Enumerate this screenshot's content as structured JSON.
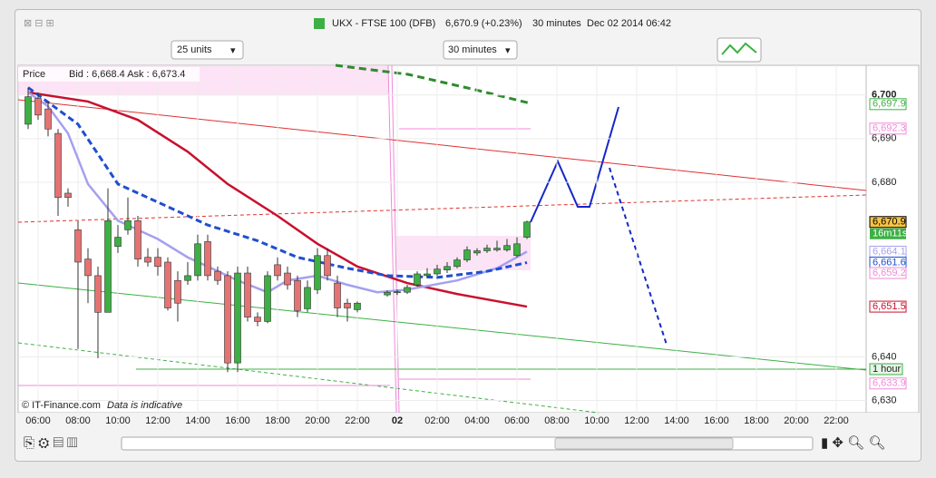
{
  "window": {
    "title": "UKX - FTSE 100 (DFB)",
    "quote": "6,670.9 (+0.23%)",
    "interval": "30 minutes",
    "datetime": "Dec 02 2014 06:42"
  },
  "toolbar": {
    "units": "25 units",
    "period": "30 minutes"
  },
  "chart_info": {
    "price": "Price",
    "bid_ask": "Bid : 6,668.4 Ask : 6,673.4",
    "copyright": "© IT-Finance.com",
    "disclaimer": "Data is indicative"
  },
  "chart_data": {
    "type": "candlestick",
    "x": [
      5.5,
      6,
      6.5,
      7,
      7.5,
      8,
      8.5,
      9,
      9.5,
      10,
      10.5,
      11,
      11.5,
      12,
      12.5,
      13,
      13.5,
      14,
      14.5,
      15,
      15.5,
      16,
      16.5,
      17,
      17.5,
      18,
      18.5,
      19,
      19.5,
      20,
      20.5,
      21,
      21.5,
      22,
      23.5,
      24,
      24.5,
      25,
      25.5,
      26,
      26.5,
      27,
      27.5,
      28,
      28.5,
      29,
      29.5,
      30,
      30.5
    ],
    "open": [
      6693.3,
      6699.2,
      6696.8,
      6691.2,
      6677.5,
      6669.1,
      6662.4,
      6658.6,
      6650.2,
      6665.3,
      6669.1,
      6671.2,
      6662.8,
      6662.8,
      6661.7,
      6657.5,
      6657.5,
      6658.6,
      6666.4,
      6659.6,
      6658.6,
      6638.6,
      6659.2,
      6649.1,
      6648.1,
      6661.1,
      6659.2,
      6657.5,
      6651.0,
      6655.4,
      6663.2,
      6656.9,
      6652.3,
      6650.8,
      6654.2,
      6654.8,
      6654.8,
      6656.5,
      6658.6,
      6659.0,
      6659.9,
      6660.7,
      6662.2,
      6663.8,
      6664.3,
      6664.5,
      6664.5,
      6663.2,
      6667.4
    ],
    "high": [
      6701.7,
      6700.6,
      6698.5,
      6692.2,
      6678.6,
      6671.2,
      6664.9,
      6660.7,
      6678.6,
      6670.2,
      6676.5,
      6672.3,
      6664.9,
      6664.9,
      6662.8,
      6659.6,
      6661.7,
      6668.0,
      6668.0,
      6660.7,
      6659.6,
      6660.7,
      6660.7,
      6650.2,
      6659.6,
      6662.8,
      6660.7,
      6658.6,
      6657.5,
      6664.9,
      6664.9,
      6658.6,
      6653.3,
      6652.7,
      6655.2,
      6655.4,
      6656.5,
      6659.6,
      6660.3,
      6661.1,
      6661.7,
      6662.8,
      6665.3,
      6664.9,
      6665.7,
      6666.6,
      6667.0,
      6667.4,
      6671.2
    ],
    "low": [
      6692.2,
      6694.3,
      6690.5,
      6672.3,
      6674.4,
      6641.8,
      6652.3,
      6639.7,
      6650.2,
      6663.8,
      6668.0,
      6660.7,
      6660.7,
      6658.6,
      6650.6,
      6648.1,
      6656.5,
      6657.5,
      6657.5,
      6656.5,
      6636.5,
      6636.5,
      6648.1,
      6647.0,
      6647.7,
      6657.5,
      6655.4,
      6649.1,
      6650.2,
      6654.4,
      6657.5,
      6649.1,
      6648.1,
      6650.2,
      6653.8,
      6654.2,
      6654.4,
      6656.1,
      6658.2,
      6658.6,
      6659.2,
      6660.3,
      6661.7,
      6663.2,
      6663.8,
      6664.1,
      6664.1,
      6662.8,
      6667.0
    ],
    "close": [
      6699.6,
      6695.4,
      6692.2,
      6676.5,
      6676.5,
      6661.7,
      6658.6,
      6650.2,
      6671.2,
      6667.4,
      6671.2,
      6662.4,
      6661.7,
      6660.7,
      6651.2,
      6652.3,
      6658.6,
      6665.9,
      6658.6,
      6657.5,
      6638.6,
      6659.2,
      6649.1,
      6648.1,
      6658.6,
      6658.6,
      6656.5,
      6650.6,
      6655.9,
      6663.2,
      6658.6,
      6651.2,
      6651.2,
      6652.3,
      6654.8,
      6654.9,
      6655.9,
      6659.0,
      6659.0,
      6660.1,
      6660.7,
      6662.2,
      6664.5,
      6664.3,
      6664.9,
      6664.9,
      6665.5,
      6665.9,
      6670.9
    ],
    "up_color": "#3cb043",
    "down_color": "#e57373",
    "lines": [
      {
        "color": "#c8102e",
        "dash": false,
        "x": [
          5.5,
          8.5,
          11,
          13.5,
          15.5,
          18,
          20,
          22,
          24.5,
          27,
          30.5
        ],
        "values": [
          6700.6,
          6698.5,
          6694.3,
          6687.0,
          6679.6,
          6672.3,
          6665.9,
          6660.7,
          6656.9,
          6654.4,
          6651.5
        ]
      },
      {
        "color": "#a5a0ee",
        "dash": false,
        "x": [
          5.5,
          6.5,
          7.5,
          8.5,
          10,
          11,
          12,
          13.5,
          14.5,
          16,
          17.5,
          18.5,
          20,
          21.5,
          23,
          24.5,
          27,
          29,
          30.5
        ],
        "values": [
          6700.6,
          6697.4,
          6691.2,
          6679.6,
          6671.2,
          6669.1,
          6667.0,
          6662.8,
          6660.7,
          6657.5,
          6654.8,
          6657.5,
          6658.6,
          6656.5,
          6654.8,
          6655.4,
          6657.5,
          6660.3,
          6664.1
        ]
      },
      {
        "color": "#1f4fd0",
        "dash": true,
        "x": [
          5.5,
          8,
          10,
          12.5,
          14.5,
          17,
          19,
          21.5,
          23.5,
          26,
          28.5,
          30.5
        ],
        "values": [
          6701.7,
          6693.3,
          6679.6,
          6674.4,
          6670.2,
          6666.6,
          6662.8,
          6660.3,
          6658.6,
          6658.2,
          6659.6,
          6661.6
        ]
      }
    ],
    "ylim": [
      6627.2,
      6706.8
    ],
    "yticks": [
      {
        "value": 6700,
        "label": "6,700"
      },
      {
        "value": 6690,
        "label": "6,690"
      },
      {
        "value": 6680,
        "label": "6,680"
      },
      {
        "value": 6640,
        "label": "6,640"
      },
      {
        "value": 6630,
        "label": "6,630"
      }
    ],
    "xlim": [
      5,
      47.5
    ],
    "xticks": [
      {
        "value": 6,
        "label": "06:00"
      },
      {
        "value": 8,
        "label": "08:00"
      },
      {
        "value": 10,
        "label": "10:00"
      },
      {
        "value": 12,
        "label": "12:00"
      },
      {
        "value": 14,
        "label": "14:00"
      },
      {
        "value": 16,
        "label": "16:00"
      },
      {
        "value": 18,
        "label": "18:00"
      },
      {
        "value": 20,
        "label": "20:00"
      },
      {
        "value": 22,
        "label": "22:00"
      },
      {
        "value": 24,
        "label": "02"
      },
      {
        "value": 26,
        "label": "02:00"
      },
      {
        "value": 28,
        "label": "04:00"
      },
      {
        "value": 30,
        "label": "06:00"
      },
      {
        "value": 32,
        "label": "08:00"
      },
      {
        "value": 34,
        "label": "10:00"
      },
      {
        "value": 36,
        "label": "12:00"
      },
      {
        "value": 38,
        "label": "14:00"
      },
      {
        "value": 40,
        "label": "16:00"
      },
      {
        "value": 42,
        "label": "18:00"
      },
      {
        "value": 44,
        "label": "20:00"
      },
      {
        "value": 46,
        "label": "22:00"
      }
    ],
    "grid": true,
    "price_labels": [
      {
        "value": 6697.9,
        "label": "6,697.9",
        "color": "#3cb043",
        "bg": "#ffffff"
      },
      {
        "value": 6692.3,
        "label": "6,692.3",
        "color": "#f08ad8",
        "bg": "#ffffff"
      },
      {
        "value": 6670.9,
        "label": "6,670.9",
        "color": "#000000",
        "bg": "#f5c242"
      },
      {
        "value": 6664.1,
        "label": "6,664.1",
        "color": "#a5a0ee",
        "bg": "#ffffff"
      },
      {
        "value": 6661.6,
        "label": "6,661.6",
        "color": "#1f4fd0",
        "bg": "#ffffff"
      },
      {
        "value": 6659.2,
        "label": "6,659.2",
        "color": "#f08ad8",
        "bg": "#ffffff"
      },
      {
        "value": 6651.5,
        "label": "6,651.5",
        "color": "#c8102e",
        "bg": "#ffffff"
      },
      {
        "value": 6633.9,
        "label": "6,633.9",
        "color": "#f08ad8",
        "bg": "#ffffff"
      }
    ],
    "countdown": "16m11s",
    "hline_label": "1 hour"
  }
}
